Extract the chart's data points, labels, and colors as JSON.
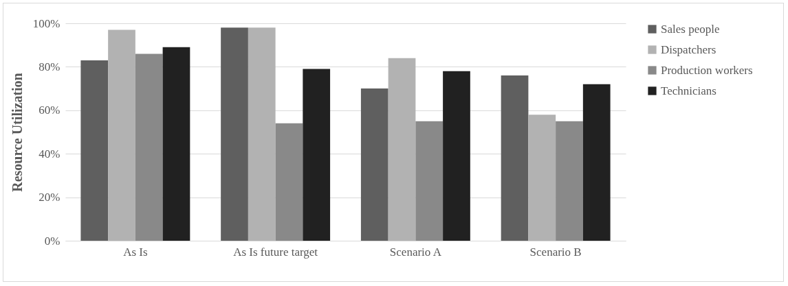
{
  "chart_data": {
    "type": "bar",
    "ylabel": "Resource Utilization",
    "categories": [
      "As Is",
      "As Is future target",
      "Scenario A",
      "Scenario B"
    ],
    "series": [
      {
        "name": "Sales people",
        "color": "#5f5f5f",
        "values": [
          83,
          98,
          70,
          76
        ]
      },
      {
        "name": "Dispatchers",
        "color": "#b2b2b2",
        "values": [
          97,
          98,
          84,
          58
        ]
      },
      {
        "name": "Production workers",
        "color": "#898989",
        "values": [
          86,
          54,
          55,
          55
        ]
      },
      {
        "name": "Technicians",
        "color": "#212121",
        "values": [
          89,
          79,
          78,
          72
        ]
      }
    ],
    "ylim": [
      0,
      100
    ],
    "yticks": [
      {
        "value": 0,
        "label": "0%"
      },
      {
        "value": 20,
        "label": "20%"
      },
      {
        "value": 40,
        "label": "40%"
      },
      {
        "value": 60,
        "label": "60%"
      },
      {
        "value": 80,
        "label": "80%"
      },
      {
        "value": 100,
        "label": "100%"
      }
    ],
    "grid": "y",
    "legend": "right"
  }
}
